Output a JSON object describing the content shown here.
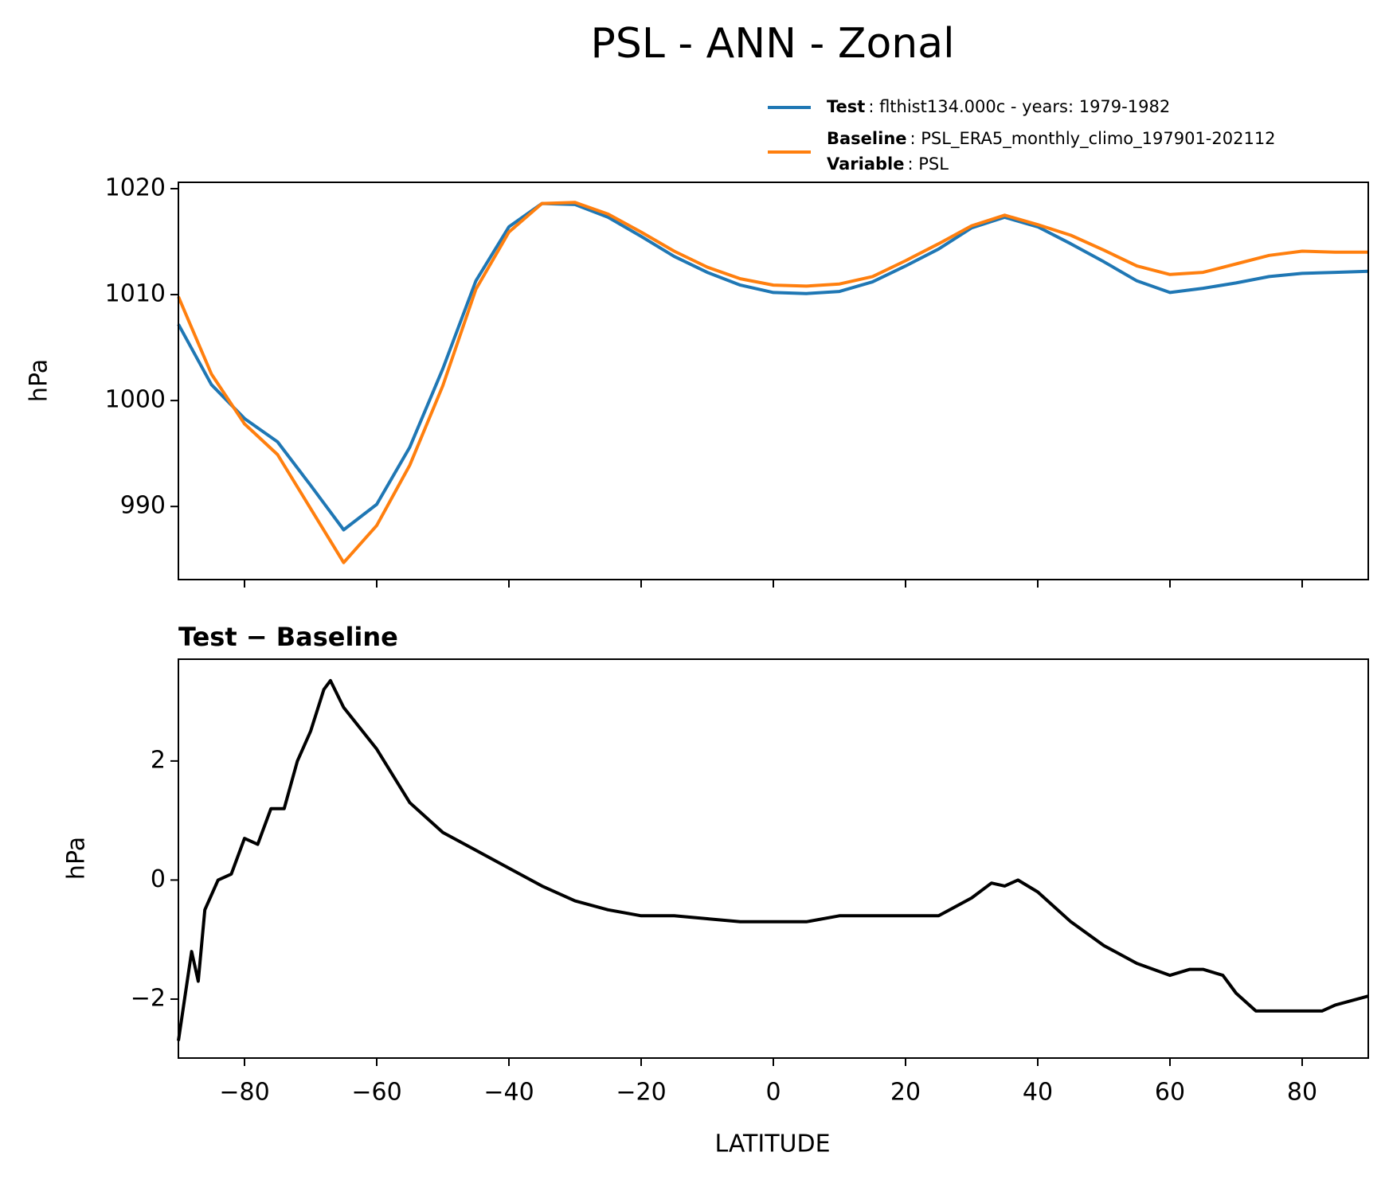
{
  "chart_data": [
    {
      "type": "line",
      "title": "PSL - ANN - Zonal",
      "ylabel": "hPa",
      "x": [
        -90,
        -85,
        -80,
        -75,
        -70,
        -65,
        -60,
        -55,
        -50,
        -45,
        -40,
        -35,
        -30,
        -25,
        -20,
        -15,
        -10,
        -5,
        0,
        5,
        10,
        15,
        20,
        25,
        30,
        35,
        40,
        45,
        50,
        55,
        60,
        65,
        70,
        75,
        80,
        85,
        90
      ],
      "series": [
        {
          "name": "Test",
          "description": ": flthist134.000c - years: 1979-1982",
          "color": "#1f77b4",
          "values": [
            1007.2,
            1001.5,
            998.3,
            996.1,
            992.0,
            987.8,
            990.2,
            995.6,
            1003.0,
            1011.3,
            1016.4,
            1018.6,
            1018.5,
            1017.3,
            1015.5,
            1013.6,
            1012.1,
            1010.9,
            1010.2,
            1010.1,
            1010.3,
            1011.2,
            1012.7,
            1014.3,
            1016.3,
            1017.3,
            1016.4,
            1014.8,
            1013.1,
            1011.3,
            1010.2,
            1010.6,
            1011.1,
            1011.7,
            1012.0,
            1012.1,
            1012.2
          ]
        },
        {
          "name": "Baseline",
          "description": ": PSL_ERA5_monthly_climo_197901-202112",
          "color": "#ff7f0e",
          "values": [
            1009.8,
            1002.5,
            997.8,
            994.9,
            989.8,
            984.7,
            988.2,
            993.9,
            1001.4,
            1010.5,
            1015.9,
            1018.6,
            1018.7,
            1017.6,
            1015.9,
            1014.1,
            1012.6,
            1011.5,
            1010.9,
            1010.8,
            1011.0,
            1011.7,
            1013.2,
            1014.8,
            1016.5,
            1017.5,
            1016.6,
            1015.6,
            1014.2,
            1012.7,
            1011.9,
            1012.1,
            1012.9,
            1013.7,
            1014.1,
            1014.0,
            1014.0
          ]
        }
      ],
      "legend_extra": {
        "name": "Variable",
        "description": ": PSL"
      },
      "xlim": [
        -90,
        90
      ],
      "xticks": [
        -80,
        -60,
        -40,
        -20,
        0,
        20,
        40,
        60,
        80
      ],
      "ylim": [
        983.1,
        1020.6
      ],
      "yticks": [
        990,
        1000,
        1010,
        1020
      ]
    },
    {
      "type": "line",
      "title": "Test − Baseline",
      "ylabel": "hPa",
      "xlabel": "LATITUDE",
      "x": [
        -90,
        -88,
        -87,
        -86,
        -84,
        -82,
        -80,
        -78,
        -76,
        -74,
        -72,
        -70,
        -68,
        -67,
        -65,
        -60,
        -55,
        -50,
        -45,
        -40,
        -35,
        -30,
        -25,
        -20,
        -15,
        -10,
        -5,
        0,
        5,
        10,
        15,
        20,
        25,
        30,
        33,
        35,
        37,
        40,
        45,
        50,
        55,
        60,
        63,
        65,
        68,
        70,
        73,
        75,
        80,
        83,
        85,
        90
      ],
      "series": [
        {
          "color": "#000000",
          "values": [
            -2.7,
            -1.2,
            -1.7,
            -0.5,
            0.0,
            0.1,
            0.7,
            0.6,
            1.2,
            1.2,
            2.0,
            2.5,
            3.2,
            3.35,
            2.9,
            2.2,
            1.3,
            0.8,
            0.5,
            0.2,
            -0.1,
            -0.35,
            -0.5,
            -0.6,
            -0.6,
            -0.65,
            -0.7,
            -0.7,
            -0.7,
            -0.6,
            -0.6,
            -0.6,
            -0.6,
            -0.3,
            -0.05,
            -0.1,
            0.0,
            -0.2,
            -0.7,
            -1.1,
            -1.4,
            -1.6,
            -1.5,
            -1.5,
            -1.6,
            -1.9,
            -2.2,
            -2.2,
            -2.2,
            -2.2,
            -2.1,
            -1.95
          ]
        }
      ],
      "xlim": [
        -90,
        90
      ],
      "xticks": [
        {
          "value": -80,
          "label": "−80"
        },
        {
          "value": -60,
          "label": "−60"
        },
        {
          "value": -40,
          "label": "−40"
        },
        {
          "value": -20,
          "label": "−20"
        },
        0,
        20,
        40,
        60,
        80
      ],
      "ylim": [
        -2.99,
        3.71
      ],
      "yticks": [
        {
          "value": -2,
          "label": "−2"
        },
        0,
        2
      ]
    }
  ]
}
